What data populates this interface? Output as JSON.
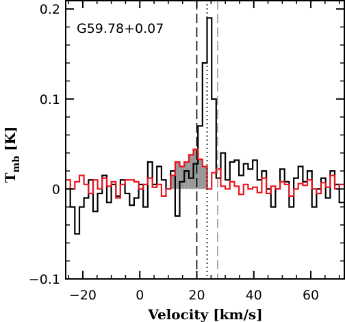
{
  "chart_data": {
    "type": "line",
    "annotation": "G59.78+0.07",
    "xlabel": "Velocity [km/s]",
    "ylabel_main": "T",
    "ylabel_sub": "mb",
    "ylabel_unit": " [K]",
    "xlim": [
      -26,
      72
    ],
    "ylim": [
      -0.1,
      0.21
    ],
    "xticks": [
      -20,
      0,
      20,
      40,
      60
    ],
    "xtick_labels": [
      "−20",
      "0",
      "20",
      "40",
      "60"
    ],
    "yticks": [
      -0.1,
      0,
      0.1,
      0.2
    ],
    "ytick_labels": [
      "−0.1",
      "0",
      "0.1",
      "0.2"
    ],
    "grid": false,
    "vlines": [
      {
        "x": 20.0,
        "style": "dashed",
        "color": "#000000"
      },
      {
        "x": 23.6,
        "style": "dotted",
        "color": "#000000"
      },
      {
        "x": 27.3,
        "style": "dashed",
        "color": "#999999"
      }
    ],
    "series": [
      {
        "color": "#000000",
        "step": 1.6,
        "x": [
          -26.0,
          -24.4,
          -22.8,
          -21.2,
          -19.6,
          -18.0,
          -16.4,
          -14.8,
          -13.2,
          -11.6,
          -10.0,
          -8.4,
          -6.8,
          -5.2,
          -3.6,
          -2.0,
          -0.4,
          1.2,
          2.8,
          4.4,
          6.0,
          7.6,
          9.2,
          10.8,
          12.4,
          14.0,
          15.6,
          17.2,
          18.8,
          20.4,
          22.0,
          23.6,
          25.2,
          26.8,
          28.4,
          30.0,
          31.6,
          33.2,
          34.8,
          36.4,
          38.0,
          39.6,
          41.2,
          42.8,
          44.4,
          46.0,
          47.6,
          49.2,
          50.8,
          52.4,
          54.0,
          55.6,
          57.2,
          58.8,
          60.4,
          62.0,
          63.6,
          65.2,
          66.8,
          68.4,
          70.0
        ],
        "y": [
          0.0,
          -0.02,
          -0.05,
          -0.02,
          -0.01,
          0.01,
          -0.025,
          -0.005,
          0.015,
          -0.015,
          0.005,
          -0.008,
          0.01,
          -0.005,
          -0.018,
          -0.01,
          0.005,
          -0.02,
          0.03,
          0.005,
          0.025,
          0.01,
          0.0,
          0.02,
          -0.03,
          0.008,
          0.02,
          0.012,
          0.028,
          0.07,
          0.14,
          0.19,
          0.1,
          0.012,
          0.04,
          0.01,
          0.03,
          0.032,
          0.015,
          0.028,
          0.022,
          0.032,
          0.01,
          0.02,
          0.0,
          -0.02,
          0.0,
          0.022,
          0.008,
          -0.02,
          0.012,
          0.025,
          0.008,
          0.02,
          -0.02,
          0.0,
          0.012,
          -0.01,
          0.02,
          0.005,
          -0.015
        ]
      },
      {
        "color": "#e8141e",
        "step": 1.6,
        "x": [
          -26.0,
          -24.4,
          -22.8,
          -21.2,
          -19.6,
          -18.0,
          -16.4,
          -14.8,
          -13.2,
          -11.6,
          -10.0,
          -8.4,
          -6.8,
          -5.2,
          -3.6,
          -2.0,
          -0.4,
          1.2,
          2.8,
          4.4,
          6.0,
          7.6,
          9.2,
          10.8,
          12.4,
          14.0,
          15.6,
          17.2,
          18.8,
          20.4,
          22.0,
          23.6,
          25.2,
          26.8,
          28.4,
          30.0,
          31.6,
          33.2,
          34.8,
          36.4,
          38.0,
          39.6,
          41.2,
          42.8,
          44.4,
          46.0,
          47.6,
          49.2,
          50.8,
          52.4,
          54.0,
          55.6,
          57.2,
          58.8,
          60.4,
          62.0,
          63.6,
          65.2,
          66.8,
          68.4,
          70.0
        ],
        "y": [
          0.01,
          0.0,
          0.008,
          0.015,
          0.005,
          -0.005,
          0.01,
          0.0,
          0.012,
          0.003,
          0.008,
          -0.01,
          0.005,
          0.01,
          0.01,
          0.008,
          0.0,
          0.005,
          0.012,
          0.002,
          0.005,
          -0.008,
          0.0,
          0.015,
          0.03,
          0.025,
          0.03,
          0.038,
          0.044,
          0.033,
          0.025,
          0.0,
          0.018,
          0.022,
          0.003,
          0.0,
          0.008,
          0.003,
          -0.006,
          0.005,
          0.0,
          0.002,
          -0.004,
          0.012,
          -0.005,
          0.003,
          0.0,
          0.008,
          0.005,
          -0.008,
          0.0,
          0.006,
          0.004,
          0.01,
          0.0,
          -0.005,
          0.007,
          0.002,
          0.015,
          0.0,
          0.005
        ]
      }
    ],
    "shaded_region": {
      "color": "#999999",
      "x": [
        10.8,
        12.4,
        14.0,
        15.6,
        17.2,
        18.8,
        20.4,
        22.0
      ],
      "y": [
        0.015,
        0.03,
        0.025,
        0.03,
        0.038,
        0.044,
        0.033,
        0.025
      ]
    }
  }
}
